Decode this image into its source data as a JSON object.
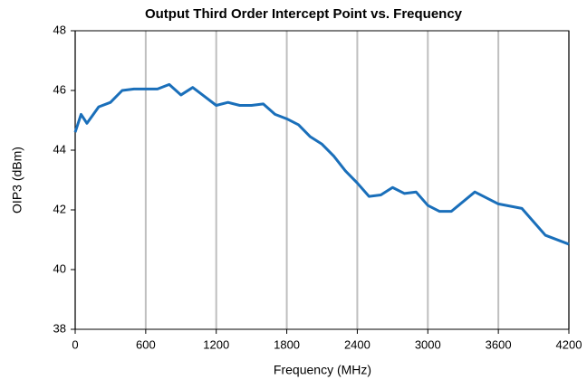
{
  "chart_data": {
    "type": "line",
    "title": "Output Third Order Intercept Point vs. Frequency",
    "xlabel": "Frequency (MHz)",
    "ylabel": "OIP3 (dBm)",
    "x": [
      0,
      50,
      100,
      200,
      300,
      400,
      500,
      600,
      700,
      800,
      900,
      1000,
      1100,
      1200,
      1300,
      1400,
      1500,
      1600,
      1700,
      1800,
      1900,
      2000,
      2100,
      2200,
      2300,
      2400,
      2500,
      2600,
      2700,
      2800,
      2900,
      3000,
      3100,
      3200,
      3400,
      3600,
      3800,
      4000,
      4200
    ],
    "series": [
      {
        "name": "OIP3",
        "color": "#1a6fba",
        "values": [
          44.6,
          45.2,
          44.9,
          45.45,
          45.6,
          46.0,
          46.05,
          46.05,
          46.05,
          46.2,
          45.85,
          46.1,
          45.8,
          45.5,
          45.6,
          45.5,
          45.5,
          45.55,
          45.2,
          45.05,
          44.85,
          44.45,
          44.2,
          43.8,
          43.3,
          42.9,
          42.45,
          42.5,
          42.75,
          42.55,
          42.6,
          42.15,
          41.95,
          41.95,
          42.6,
          42.2,
          42.05,
          41.15,
          40.85
        ]
      }
    ],
    "xlim": [
      0,
      4200
    ],
    "xticks": [
      0,
      600,
      1200,
      1800,
      2400,
      3000,
      3600,
      4200
    ],
    "ylim": [
      38,
      48
    ],
    "yticks": [
      38,
      40,
      42,
      44,
      46,
      48
    ],
    "grid": "x"
  }
}
